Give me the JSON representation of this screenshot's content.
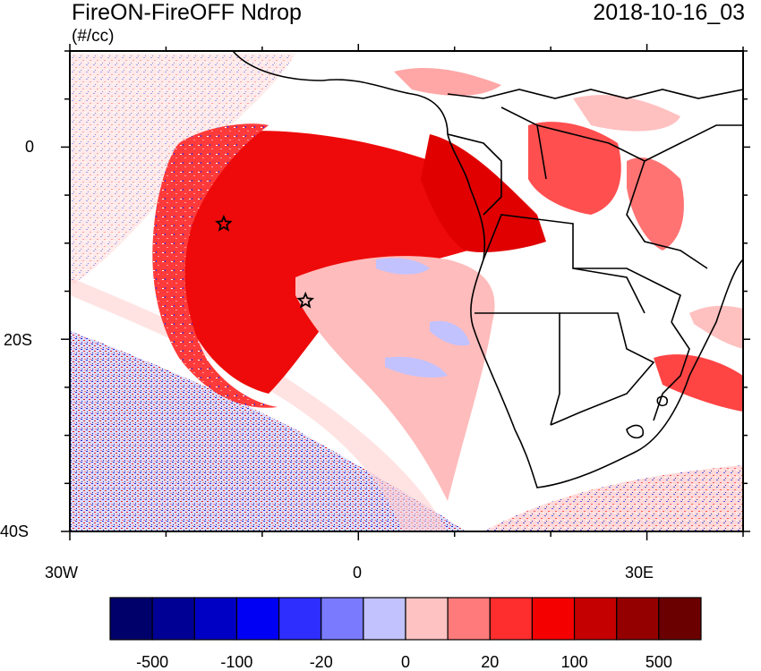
{
  "title": "FireON-FireOFF Ndrop",
  "units": "(#/cc)",
  "timestamp": "2018-10-16_03",
  "lat_labels": [
    "0",
    "20S",
    "40S"
  ],
  "lon_labels": [
    "30W",
    "0",
    "30E"
  ],
  "colorbar": {
    "colors": [
      "#00006b",
      "#000094",
      "#0000c4",
      "#0000f5",
      "#2e2eff",
      "#7a7aff",
      "#c2c2ff",
      "#ffc2c2",
      "#ff7a7a",
      "#ff2e2e",
      "#f50000",
      "#c40000",
      "#940000",
      "#6b0000"
    ],
    "labels": [
      "-500",
      "-100",
      "-20",
      "0",
      "20",
      "100",
      "500"
    ]
  },
  "markers": [
    {
      "name": "star-marker-north",
      "lon": -14,
      "lat": -8
    },
    {
      "name": "star-marker-south",
      "lon": -5.5,
      "lat": -16
    }
  ],
  "colors": {
    "strong_pos": "#e50000",
    "mid_pos": "#ff3030",
    "weak_pos": "#ffb0b0",
    "weak_neg": "#c6c6ff",
    "strong_neg": "#1010d0"
  }
}
